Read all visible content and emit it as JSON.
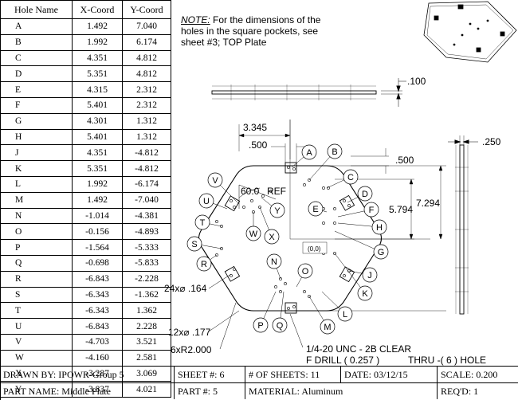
{
  "table": {
    "headers": [
      "Hole Name",
      "X-Coord",
      "Y-Coord"
    ],
    "rows": [
      [
        "A",
        "1.492",
        "7.040"
      ],
      [
        "B",
        "1.992",
        "6.174"
      ],
      [
        "C",
        "4.351",
        "4.812"
      ],
      [
        "D",
        "5.351",
        "4.812"
      ],
      [
        "E",
        "4.315",
        "2.312"
      ],
      [
        "F",
        "5.401",
        "2.312"
      ],
      [
        "G",
        "4.301",
        "1.312"
      ],
      [
        "H",
        "5.401",
        "1.312"
      ],
      [
        "J",
        "4.351",
        "-4.812"
      ],
      [
        "K",
        "5.351",
        "-4.812"
      ],
      [
        "L",
        "1.992",
        "-6.174"
      ],
      [
        "M",
        "1.492",
        "-7.040"
      ],
      [
        "N",
        "-1.014",
        "-4.381"
      ],
      [
        "O",
        "-0.156",
        "-4.893"
      ],
      [
        "P",
        "-1.564",
        "-5.333"
      ],
      [
        "Q",
        "-0.698",
        "-5.833"
      ],
      [
        "R",
        "-6.843",
        "-2.228"
      ],
      [
        "S",
        "-6.343",
        "-1.362"
      ],
      [
        "T",
        "-6.343",
        "1.362"
      ],
      [
        "U",
        "-6.843",
        "2.228"
      ],
      [
        "V",
        "-4.703",
        "3.521"
      ],
      [
        "W",
        "-4.160",
        "2.581"
      ],
      [
        "X",
        "-3.287",
        "3.069"
      ],
      [
        "Y",
        "-3.837",
        "4.021"
      ]
    ]
  },
  "note": {
    "heading": "NOTE:",
    "body": "For the dimensions of the holes in the square pockets, see sheet #3; TOP Plate"
  },
  "dimensions": {
    "d_100": ".100",
    "d_250": ".250",
    "d_3345": "3.345",
    "d_500a": ".500",
    "d_500b": ".500",
    "d_7294": "7.294",
    "d_5794": "5.794",
    "angle": "60.0",
    "angle_ref": "REF",
    "origin": "(0,0)",
    "holes_164": "24x⌀ .164",
    "holes_177": "12x⌀ .177",
    "radius": "6xR2.000",
    "tap_line1": "1/4-20 UNC - 2B CLEAR",
    "tap_line2": "F DRILL ( 0.257 )",
    "tap_line3": "THRU  -( 6 ) HOLE"
  },
  "callouts": [
    {
      "id": "A",
      "label": "A"
    },
    {
      "id": "B",
      "label": "B"
    },
    {
      "id": "C",
      "label": "C"
    },
    {
      "id": "D",
      "label": "D"
    },
    {
      "id": "E",
      "label": "E"
    },
    {
      "id": "F",
      "label": "F"
    },
    {
      "id": "G",
      "label": "G"
    },
    {
      "id": "H",
      "label": "H"
    },
    {
      "id": "J",
      "label": "J"
    },
    {
      "id": "K",
      "label": "K"
    },
    {
      "id": "L",
      "label": "L"
    },
    {
      "id": "M",
      "label": "M"
    },
    {
      "id": "N",
      "label": "N"
    },
    {
      "id": "O",
      "label": "O"
    },
    {
      "id": "P",
      "label": "P"
    },
    {
      "id": "Q",
      "label": "Q"
    },
    {
      "id": "R",
      "label": "R"
    },
    {
      "id": "S",
      "label": "S"
    },
    {
      "id": "T",
      "label": "T"
    },
    {
      "id": "U",
      "label": "U"
    },
    {
      "id": "V",
      "label": "V"
    },
    {
      "id": "W",
      "label": "W"
    },
    {
      "id": "X",
      "label": "X"
    },
    {
      "id": "Y",
      "label": "Y"
    }
  ],
  "title_block": {
    "drawn_by": "DRAWN BY: IPOWR-Group 5",
    "sheet": "SHEET #: 6",
    "num_sheets": "# OF SHEETS: 11",
    "date": "DATE: 03/12/15",
    "scale": "SCALE: 0.200",
    "part_name": "PART NAME: Middle Plate",
    "part_num": "PART #:  5",
    "material": "MATERIAL: Aluminum",
    "reqd": "REQ'D: 1"
  }
}
